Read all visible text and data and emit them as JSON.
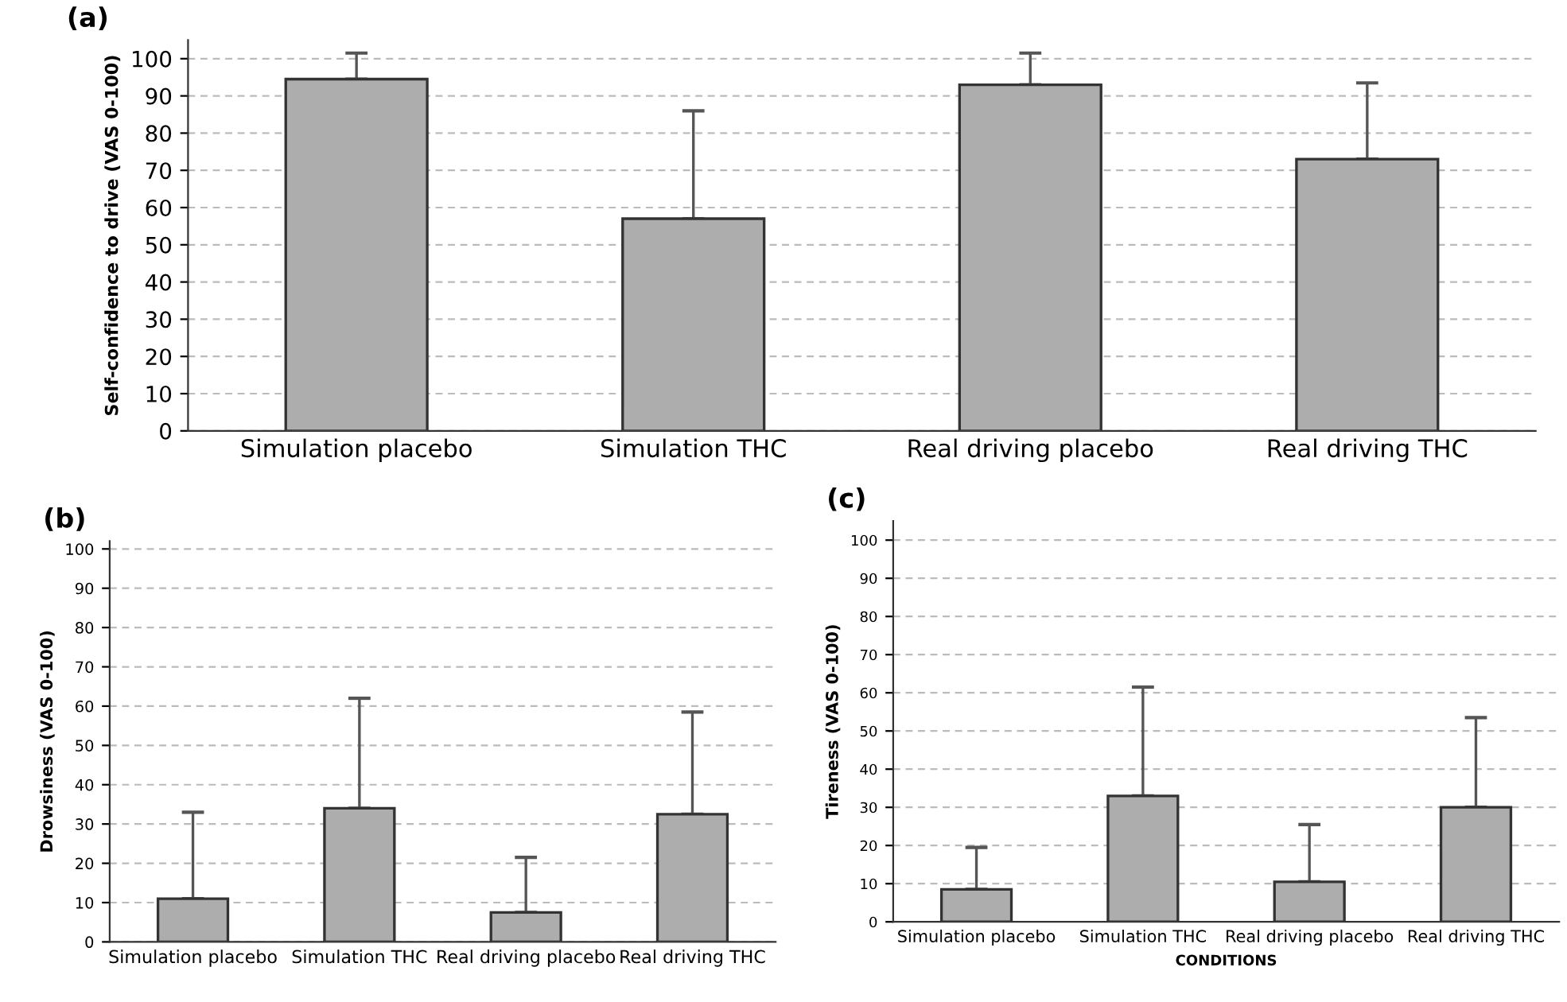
{
  "chart_data": [
    {
      "type": "bar",
      "annotations": [
        "(a)"
      ],
      "ylabel": "Self-confidence to drive (VAS 0-100)",
      "categories": [
        "Simulation placebo",
        "Simulation THC",
        "Real driving placebo",
        "Real driving THC"
      ],
      "values": [
        94.5,
        57,
        93,
        73
      ],
      "errors": [
        [
          94.5,
          101.5
        ],
        [
          57,
          86
        ],
        [
          93,
          101.5
        ],
        [
          73,
          93.5
        ]
      ],
      "color": "#adadad",
      "ylim": [
        0,
        105
      ],
      "yticks": [
        0,
        10,
        20,
        30,
        40,
        50,
        60,
        70,
        80,
        90,
        100
      ],
      "grid": "y"
    },
    {
      "type": "bar",
      "annotations": [
        "(b)"
      ],
      "ylabel": "Drowsiness (VAS 0-100)",
      "categories": [
        "Simulation placebo",
        "Simulation THC",
        "Real driving placebo",
        "Real driving THC"
      ],
      "values": [
        11,
        34,
        7.5,
        32.5
      ],
      "errors": [
        [
          11,
          33
        ],
        [
          34,
          62
        ],
        [
          7.5,
          21.5
        ],
        [
          32.5,
          58.5
        ]
      ],
      "color": "#adadad",
      "ylim": [
        0,
        102
      ],
      "yticks": [
        0,
        10,
        20,
        30,
        40,
        50,
        60,
        70,
        80,
        90,
        100
      ],
      "grid": "y"
    },
    {
      "type": "bar",
      "annotations": [
        "(c)"
      ],
      "ylabel": "Tireness (VAS 0-100)",
      "xlabel": "CONDITIONS",
      "categories": [
        "Simulation placebo",
        "Simulation THC",
        "Real driving placebo",
        "Real driving THC"
      ],
      "values": [
        8.5,
        33,
        10.5,
        30
      ],
      "errors": [
        [
          8.5,
          19.5
        ],
        [
          33,
          61.5
        ],
        [
          10.5,
          25.5
        ],
        [
          30,
          53.5
        ]
      ],
      "color": "#adadad",
      "ylim": [
        0,
        105
      ],
      "yticks": [
        0,
        10,
        20,
        30,
        40,
        50,
        60,
        70,
        80,
        90,
        100
      ],
      "grid": "y"
    }
  ]
}
